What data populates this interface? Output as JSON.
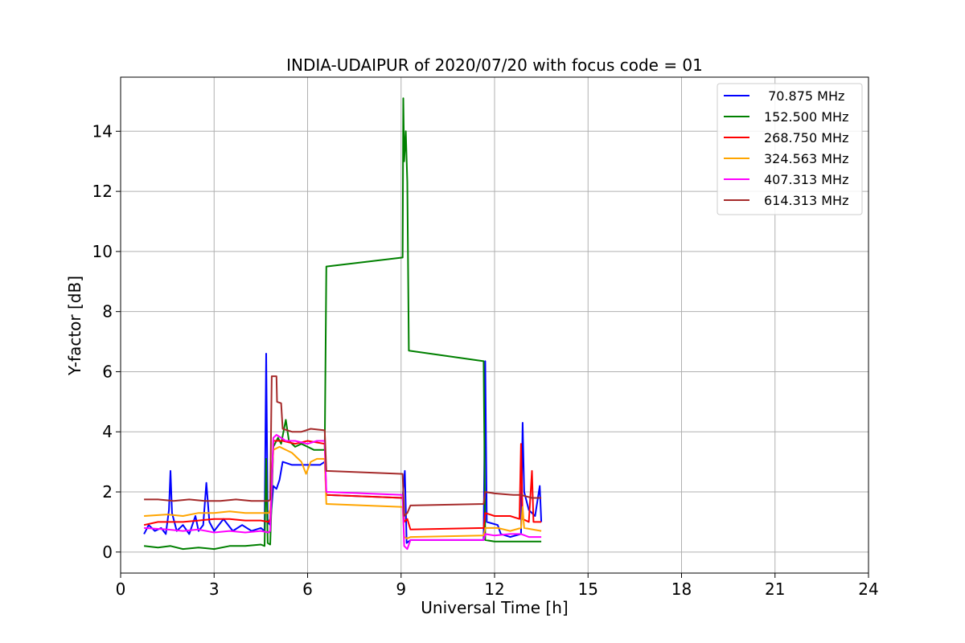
{
  "chart_data": {
    "type": "line",
    "title": "INDIA-UDAIPUR of 2020/07/20 with focus code = 01",
    "xlabel": "Universal Time [h]",
    "ylabel": "Y-factor [dB]",
    "xlim": [
      0,
      24
    ],
    "ylim": [
      -0.7,
      15.8
    ],
    "xticks": [
      0,
      3,
      6,
      9,
      12,
      15,
      18,
      21,
      24
    ],
    "yticks": [
      0,
      2,
      4,
      6,
      8,
      10,
      12,
      14
    ],
    "grid": true,
    "legend_position": "top-right",
    "series": [
      {
        "name": " 70.875 MHz",
        "color": "#0000ff",
        "points": [
          [
            0.75,
            0.6
          ],
          [
            0.9,
            0.9
          ],
          [
            1.1,
            0.7
          ],
          [
            1.3,
            0.8
          ],
          [
            1.45,
            0.6
          ],
          [
            1.55,
            1.4
          ],
          [
            1.6,
            2.7
          ],
          [
            1.65,
            1.3
          ],
          [
            1.8,
            0.7
          ],
          [
            2.0,
            0.9
          ],
          [
            2.2,
            0.6
          ],
          [
            2.4,
            1.2
          ],
          [
            2.5,
            0.7
          ],
          [
            2.65,
            0.9
          ],
          [
            2.75,
            2.3
          ],
          [
            2.85,
            1.0
          ],
          [
            3.0,
            0.7
          ],
          [
            3.3,
            1.1
          ],
          [
            3.6,
            0.7
          ],
          [
            3.9,
            0.9
          ],
          [
            4.2,
            0.7
          ],
          [
            4.5,
            0.8
          ],
          [
            4.62,
            0.7
          ],
          [
            4.67,
            6.6
          ],
          [
            4.72,
            1.0
          ],
          [
            4.8,
            0.9
          ],
          [
            4.9,
            2.2
          ],
          [
            5.0,
            2.1
          ],
          [
            5.1,
            2.4
          ],
          [
            5.2,
            3.0
          ],
          [
            5.5,
            2.9
          ],
          [
            5.8,
            2.9
          ],
          [
            6.1,
            2.9
          ],
          [
            6.4,
            2.9
          ],
          [
            6.55,
            3.0
          ],
          [
            6.6,
            1.9
          ],
          [
            9.05,
            1.8
          ],
          [
            9.12,
            2.7
          ],
          [
            9.18,
            0.3
          ],
          [
            9.3,
            0.4
          ],
          [
            11.65,
            0.4
          ],
          [
            11.7,
            6.35
          ],
          [
            11.75,
            1.0
          ],
          [
            12.1,
            0.9
          ],
          [
            12.2,
            0.6
          ],
          [
            12.5,
            0.5
          ],
          [
            12.85,
            0.6
          ],
          [
            12.9,
            4.3
          ],
          [
            12.95,
            2.0
          ],
          [
            13.1,
            1.4
          ],
          [
            13.3,
            1.2
          ],
          [
            13.45,
            2.2
          ],
          [
            13.5,
            1.0
          ]
        ]
      },
      {
        "name": "152.500 MHz",
        "color": "#008000",
        "points": [
          [
            0.75,
            0.2
          ],
          [
            1.2,
            0.15
          ],
          [
            1.6,
            0.2
          ],
          [
            2.0,
            0.1
          ],
          [
            2.5,
            0.15
          ],
          [
            3.0,
            0.1
          ],
          [
            3.5,
            0.2
          ],
          [
            4.0,
            0.2
          ],
          [
            4.5,
            0.25
          ],
          [
            4.62,
            0.2
          ],
          [
            4.67,
            3.1
          ],
          [
            4.72,
            0.3
          ],
          [
            4.8,
            0.25
          ],
          [
            4.9,
            3.5
          ],
          [
            5.05,
            3.8
          ],
          [
            5.15,
            3.6
          ],
          [
            5.3,
            4.4
          ],
          [
            5.4,
            3.7
          ],
          [
            5.6,
            3.5
          ],
          [
            5.8,
            3.6
          ],
          [
            6.0,
            3.5
          ],
          [
            6.2,
            3.4
          ],
          [
            6.55,
            3.4
          ],
          [
            6.6,
            9.5
          ],
          [
            9.05,
            9.8
          ],
          [
            9.07,
            15.1
          ],
          [
            9.1,
            13.0
          ],
          [
            9.15,
            14.0
          ],
          [
            9.2,
            12.3
          ],
          [
            9.25,
            6.7
          ],
          [
            11.65,
            6.35
          ],
          [
            11.7,
            0.4
          ],
          [
            12.0,
            0.35
          ],
          [
            12.8,
            0.35
          ],
          [
            13.5,
            0.35
          ]
        ]
      },
      {
        "name": "268.750 MHz",
        "color": "#ff0000",
        "points": [
          [
            0.75,
            0.9
          ],
          [
            1.2,
            1.0
          ],
          [
            2.0,
            1.0
          ],
          [
            2.5,
            1.05
          ],
          [
            3.0,
            1.1
          ],
          [
            3.5,
            1.1
          ],
          [
            4.0,
            1.05
          ],
          [
            4.5,
            1.05
          ],
          [
            4.75,
            1.0
          ],
          [
            4.8,
            1.1
          ],
          [
            4.9,
            3.7
          ],
          [
            5.2,
            3.7
          ],
          [
            5.6,
            3.6
          ],
          [
            6.0,
            3.7
          ],
          [
            6.55,
            3.6
          ],
          [
            6.6,
            1.9
          ],
          [
            9.05,
            1.8
          ],
          [
            9.1,
            1.0
          ],
          [
            9.2,
            1.1
          ],
          [
            9.3,
            0.75
          ],
          [
            11.65,
            0.8
          ],
          [
            11.7,
            1.3
          ],
          [
            12.0,
            1.2
          ],
          [
            12.5,
            1.2
          ],
          [
            12.8,
            1.1
          ],
          [
            12.85,
            3.6
          ],
          [
            12.9,
            1.1
          ],
          [
            13.1,
            1.0
          ],
          [
            13.2,
            2.7
          ],
          [
            13.25,
            1.0
          ],
          [
            13.5,
            1.0
          ]
        ]
      },
      {
        "name": "324.563 MHz",
        "color": "#ffa500",
        "points": [
          [
            0.75,
            1.2
          ],
          [
            1.5,
            1.25
          ],
          [
            2.0,
            1.2
          ],
          [
            2.5,
            1.3
          ],
          [
            3.0,
            1.3
          ],
          [
            3.5,
            1.35
          ],
          [
            4.0,
            1.3
          ],
          [
            4.5,
            1.3
          ],
          [
            4.75,
            1.3
          ],
          [
            4.8,
            1.4
          ],
          [
            4.9,
            3.4
          ],
          [
            5.1,
            3.5
          ],
          [
            5.5,
            3.3
          ],
          [
            5.8,
            3.0
          ],
          [
            5.95,
            2.6
          ],
          [
            6.1,
            3.0
          ],
          [
            6.3,
            3.1
          ],
          [
            6.55,
            3.1
          ],
          [
            6.6,
            1.6
          ],
          [
            9.05,
            1.5
          ],
          [
            9.1,
            0.5
          ],
          [
            9.2,
            0.45
          ],
          [
            9.3,
            0.5
          ],
          [
            11.65,
            0.55
          ],
          [
            11.7,
            0.8
          ],
          [
            12.1,
            0.8
          ],
          [
            12.5,
            0.7
          ],
          [
            12.85,
            0.8
          ],
          [
            12.9,
            1.5
          ],
          [
            12.95,
            0.8
          ],
          [
            13.5,
            0.7
          ]
        ]
      },
      {
        "name": "407.313 MHz",
        "color": "#ff00ff",
        "points": [
          [
            0.75,
            0.8
          ],
          [
            1.5,
            0.75
          ],
          [
            2.0,
            0.7
          ],
          [
            2.5,
            0.75
          ],
          [
            3.0,
            0.65
          ],
          [
            3.5,
            0.7
          ],
          [
            4.0,
            0.65
          ],
          [
            4.5,
            0.7
          ],
          [
            4.75,
            0.65
          ],
          [
            4.8,
            0.7
          ],
          [
            4.9,
            3.8
          ],
          [
            5.0,
            3.9
          ],
          [
            5.3,
            3.7
          ],
          [
            5.6,
            3.7
          ],
          [
            6.0,
            3.6
          ],
          [
            6.3,
            3.7
          ],
          [
            6.55,
            3.7
          ],
          [
            6.6,
            2.0
          ],
          [
            9.05,
            1.9
          ],
          [
            9.1,
            0.2
          ],
          [
            9.2,
            0.1
          ],
          [
            9.3,
            0.4
          ],
          [
            11.65,
            0.4
          ],
          [
            11.7,
            0.6
          ],
          [
            12.0,
            0.55
          ],
          [
            12.5,
            0.6
          ],
          [
            12.85,
            0.6
          ],
          [
            13.1,
            0.5
          ],
          [
            13.5,
            0.5
          ]
        ]
      },
      {
        "name": "614.313 MHz",
        "color": "#a52a2a",
        "points": [
          [
            0.75,
            1.75
          ],
          [
            1.2,
            1.75
          ],
          [
            1.7,
            1.7
          ],
          [
            2.2,
            1.75
          ],
          [
            2.7,
            1.7
          ],
          [
            3.2,
            1.7
          ],
          [
            3.7,
            1.75
          ],
          [
            4.2,
            1.7
          ],
          [
            4.75,
            1.7
          ],
          [
            4.8,
            1.75
          ],
          [
            4.85,
            5.85
          ],
          [
            5.0,
            5.85
          ],
          [
            5.02,
            5.0
          ],
          [
            5.15,
            4.95
          ],
          [
            5.2,
            4.1
          ],
          [
            5.5,
            4.0
          ],
          [
            5.8,
            4.0
          ],
          [
            6.1,
            4.1
          ],
          [
            6.55,
            4.05
          ],
          [
            6.6,
            2.7
          ],
          [
            9.05,
            2.6
          ],
          [
            9.1,
            1.2
          ],
          [
            9.2,
            1.3
          ],
          [
            9.3,
            1.55
          ],
          [
            11.65,
            1.6
          ],
          [
            11.7,
            2.0
          ],
          [
            12.0,
            1.95
          ],
          [
            12.6,
            1.9
          ],
          [
            12.85,
            1.9
          ],
          [
            13.2,
            1.8
          ],
          [
            13.5,
            1.8
          ]
        ]
      }
    ]
  }
}
